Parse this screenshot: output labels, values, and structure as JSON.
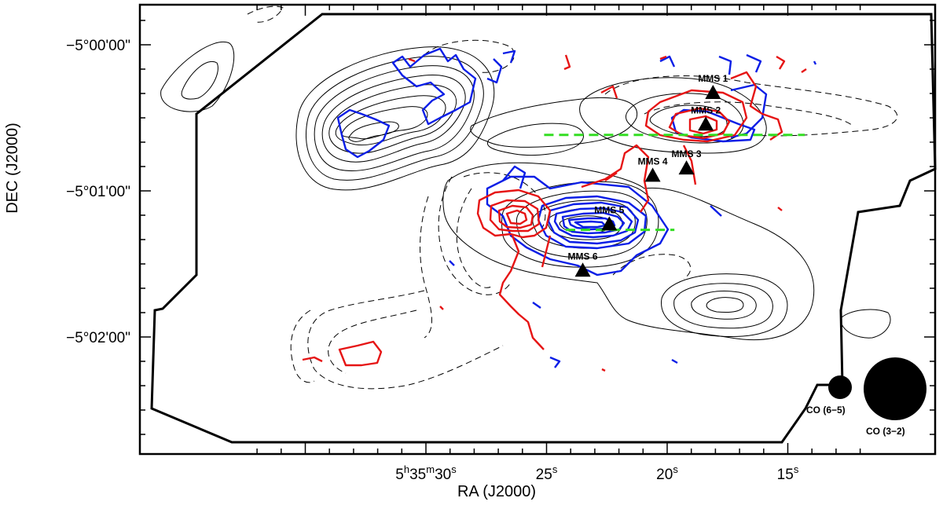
{
  "chart_data": {
    "type": "contour_map",
    "xlabel": "RA (J2000)",
    "ylabel": "DEC (J2000)",
    "x_ticks": [
      {
        "ra_sec": 30,
        "label": "5",
        "sup1": "h",
        "mid": "35",
        "sup2": "m",
        "end": "30",
        "sup3": "s"
      },
      {
        "ra_sec": 25,
        "label": "25",
        "sup3": "s"
      },
      {
        "ra_sec": 20,
        "label": "20",
        "sup3": "s"
      },
      {
        "ra_sec": 15,
        "label": "15",
        "sup3": "s"
      }
    ],
    "y_ticks": [
      {
        "dec_arcsec": 0,
        "label": "−5°00'00\""
      },
      {
        "dec_arcsec": -60,
        "label": "−5°01'00\""
      },
      {
        "dec_arcsec": -120,
        "label": "−5°02'00\""
      }
    ],
    "sources": [
      {
        "name": "MMS 1",
        "ra_sec": 18.1,
        "dec_arcsec": -20
      },
      {
        "name": "MMS 2",
        "ra_sec": 18.4,
        "dec_arcsec": -33
      },
      {
        "name": "MMS 3",
        "ra_sec": 19.2,
        "dec_arcsec": -51
      },
      {
        "name": "MMS 4",
        "ra_sec": 20.6,
        "dec_arcsec": -54
      },
      {
        "name": "MMS 5",
        "ra_sec": 22.4,
        "dec_arcsec": -74
      },
      {
        "name": "MMS 6",
        "ra_sec": 23.5,
        "dec_arcsec": -93
      }
    ],
    "cuts": [
      {
        "ra_start_sec": 25.1,
        "ra_end_sec": 14.3,
        "dec_arcsec": -37
      },
      {
        "ra_start_sec": 24.2,
        "ra_end_sec": 19.7,
        "dec_arcsec": -76
      }
    ],
    "beams": [
      {
        "label": "CO (6−5)"
      },
      {
        "label": "CO (3−2)"
      }
    ],
    "series": [
      {
        "name": "",
        "color": "#000000",
        "style": "solid"
      },
      {
        "name": "",
        "color": "#000000",
        "style": "dashed"
      },
      {
        "name": "",
        "color": "#0a1ee6",
        "style": "solid"
      },
      {
        "name": "",
        "color": "#e61414",
        "style": "solid"
      },
      {
        "name": "",
        "color": "#33dd22",
        "style": "dashed"
      }
    ],
    "colors": {
      "frame": "#000000",
      "blue": "#0a1ee6",
      "red": "#e61414",
      "green": "#33dd22"
    }
  }
}
